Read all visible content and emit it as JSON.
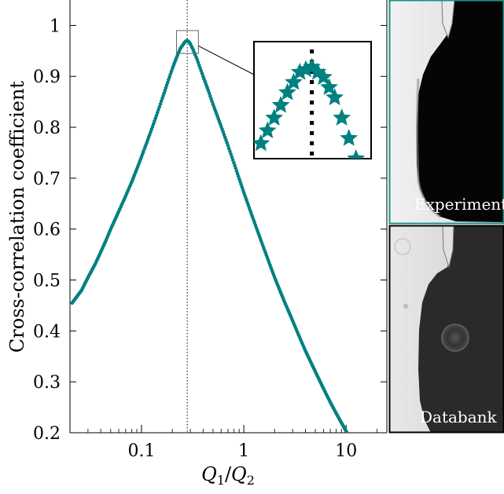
{
  "colors": {
    "series": "#008080",
    "inset_frame": "#000000",
    "experiment_border": "#1f8f8a"
  },
  "chart_data": {
    "type": "scatter",
    "title": "",
    "xlabel": "Q_1/Q_2",
    "ylabel": "Cross-correlation coefficient",
    "x_scale": "log",
    "xlim": [
      0.02,
      25
    ],
    "ylim": [
      0.2,
      1.05
    ],
    "x_ticks": [
      0.1,
      1,
      10
    ],
    "x_tick_labels": [
      "0.1",
      "1",
      "10"
    ],
    "y_ticks": [
      0.2,
      0.3,
      0.4,
      0.5,
      0.6,
      0.7,
      0.8,
      0.9,
      1.0
    ],
    "y_tick_labels": [
      "0.2",
      "0.3",
      "0.4",
      "0.5",
      "0.6",
      "0.7",
      "0.8",
      "0.9",
      "1"
    ],
    "peak_x": 0.28,
    "peak_y": 0.97,
    "series": [
      {
        "x": [
          0.021,
          0.026,
          0.03,
          0.035,
          0.04,
          0.045,
          0.05,
          0.06,
          0.07,
          0.08,
          0.09,
          0.1,
          0.12,
          0.14,
          0.16,
          0.18,
          0.2,
          0.22,
          0.24,
          0.26,
          0.27,
          0.28,
          0.29,
          0.3,
          0.32,
          0.35,
          0.4,
          0.45,
          0.5,
          0.6,
          0.7,
          0.8,
          1.0,
          1.2,
          1.5,
          2.0,
          2.5,
          3.0,
          3.5,
          4.0,
          5.0,
          6.0,
          7.0,
          8.0,
          10.0,
          12.5
        ],
        "y": [
          0.455,
          0.48,
          0.505,
          0.53,
          0.555,
          0.578,
          0.6,
          0.635,
          0.665,
          0.692,
          0.718,
          0.742,
          0.785,
          0.823,
          0.857,
          0.888,
          0.915,
          0.937,
          0.955,
          0.965,
          0.969,
          0.97,
          0.968,
          0.964,
          0.952,
          0.933,
          0.9,
          0.872,
          0.845,
          0.802,
          0.764,
          0.73,
          0.672,
          0.627,
          0.573,
          0.505,
          0.457,
          0.42,
          0.388,
          0.361,
          0.32,
          0.287,
          0.26,
          0.238,
          0.203,
          0.17
        ]
      }
    ]
  },
  "inset": {},
  "panels": {
    "experiment_label": "Experiment",
    "databank_label": "Databank"
  }
}
